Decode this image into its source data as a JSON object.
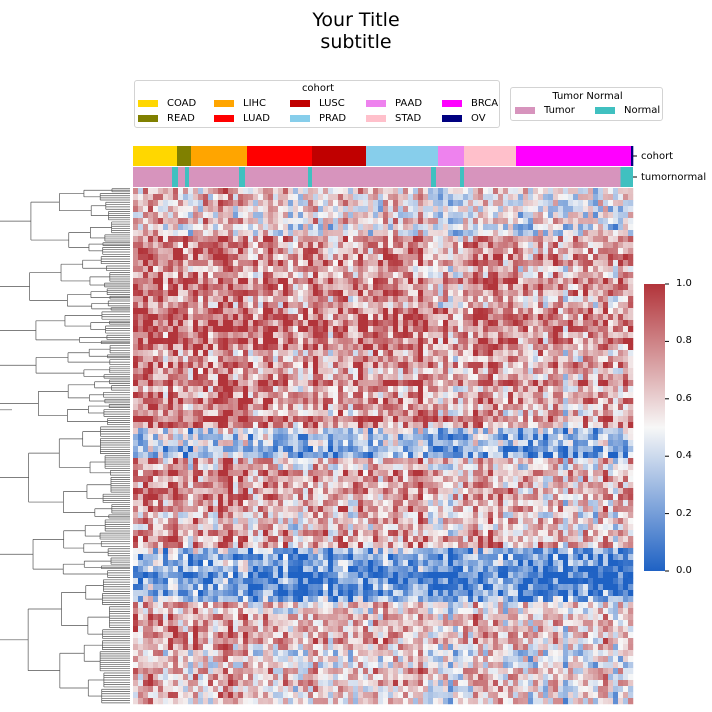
{
  "title": "Your Title",
  "subtitle": "subtitle",
  "cohort_legend": {
    "title": "cohort",
    "items": [
      {
        "label": "COAD",
        "color": "#ffd700"
      },
      {
        "label": "READ",
        "color": "#808000"
      },
      {
        "label": "LIHC",
        "color": "#ffa500"
      },
      {
        "label": "LUAD",
        "color": "#ff0000"
      },
      {
        "label": "LUSC",
        "color": "#c00000"
      },
      {
        "label": "PRAD",
        "color": "#87ceeb"
      },
      {
        "label": "PAAD",
        "color": "#ee82ee"
      },
      {
        "label": "STAD",
        "color": "#ffc0cb"
      },
      {
        "label": "BRCA",
        "color": "#ff00ff"
      },
      {
        "label": "OV",
        "color": "#000080"
      }
    ]
  },
  "tumor_normal_legend": {
    "title": "Tumor Normal",
    "items": [
      {
        "label": "Tumor",
        "color": "#d794bd"
      },
      {
        "label": "Normal",
        "color": "#40c0c0"
      }
    ]
  },
  "annotation_labels": {
    "cohort": "cohort",
    "tumornormal": "tumornormal"
  },
  "chart_data": {
    "type": "heatmap",
    "title": "Your Title",
    "subtitle": "subtitle",
    "colormap": "blue-white-red",
    "colorbar": {
      "min": 0.0,
      "max": 1.0,
      "ticks": [
        "0.0",
        "0.2",
        "0.4",
        "0.6",
        "0.8",
        "1.0"
      ]
    },
    "column_annotations": {
      "cohort": [
        {
          "label": "COAD",
          "fraction": 0.088
        },
        {
          "label": "READ",
          "fraction": 0.028
        },
        {
          "label": "LIHC",
          "fraction": 0.112
        },
        {
          "label": "LUAD",
          "fraction": 0.13
        },
        {
          "label": "LUSC",
          "fraction": 0.108
        },
        {
          "label": "PRAD",
          "fraction": 0.144
        },
        {
          "label": "PAAD",
          "fraction": 0.052
        },
        {
          "label": "STAD",
          "fraction": 0.104
        },
        {
          "label": "BRCA",
          "fraction": 0.23
        },
        {
          "label": "OV",
          "fraction": 0.004
        }
      ]
    },
    "row_blocks": [
      {
        "rows": 0.09,
        "mean": 0.55
      },
      {
        "rows": 0.37,
        "mean": 0.72
      },
      {
        "rows": 0.06,
        "mean": 0.3
      },
      {
        "rows": 0.18,
        "mean": 0.62
      },
      {
        "rows": 0.1,
        "mean": 0.18
      },
      {
        "rows": 0.2,
        "mean": 0.58
      }
    ],
    "row_dendrogram": true
  }
}
